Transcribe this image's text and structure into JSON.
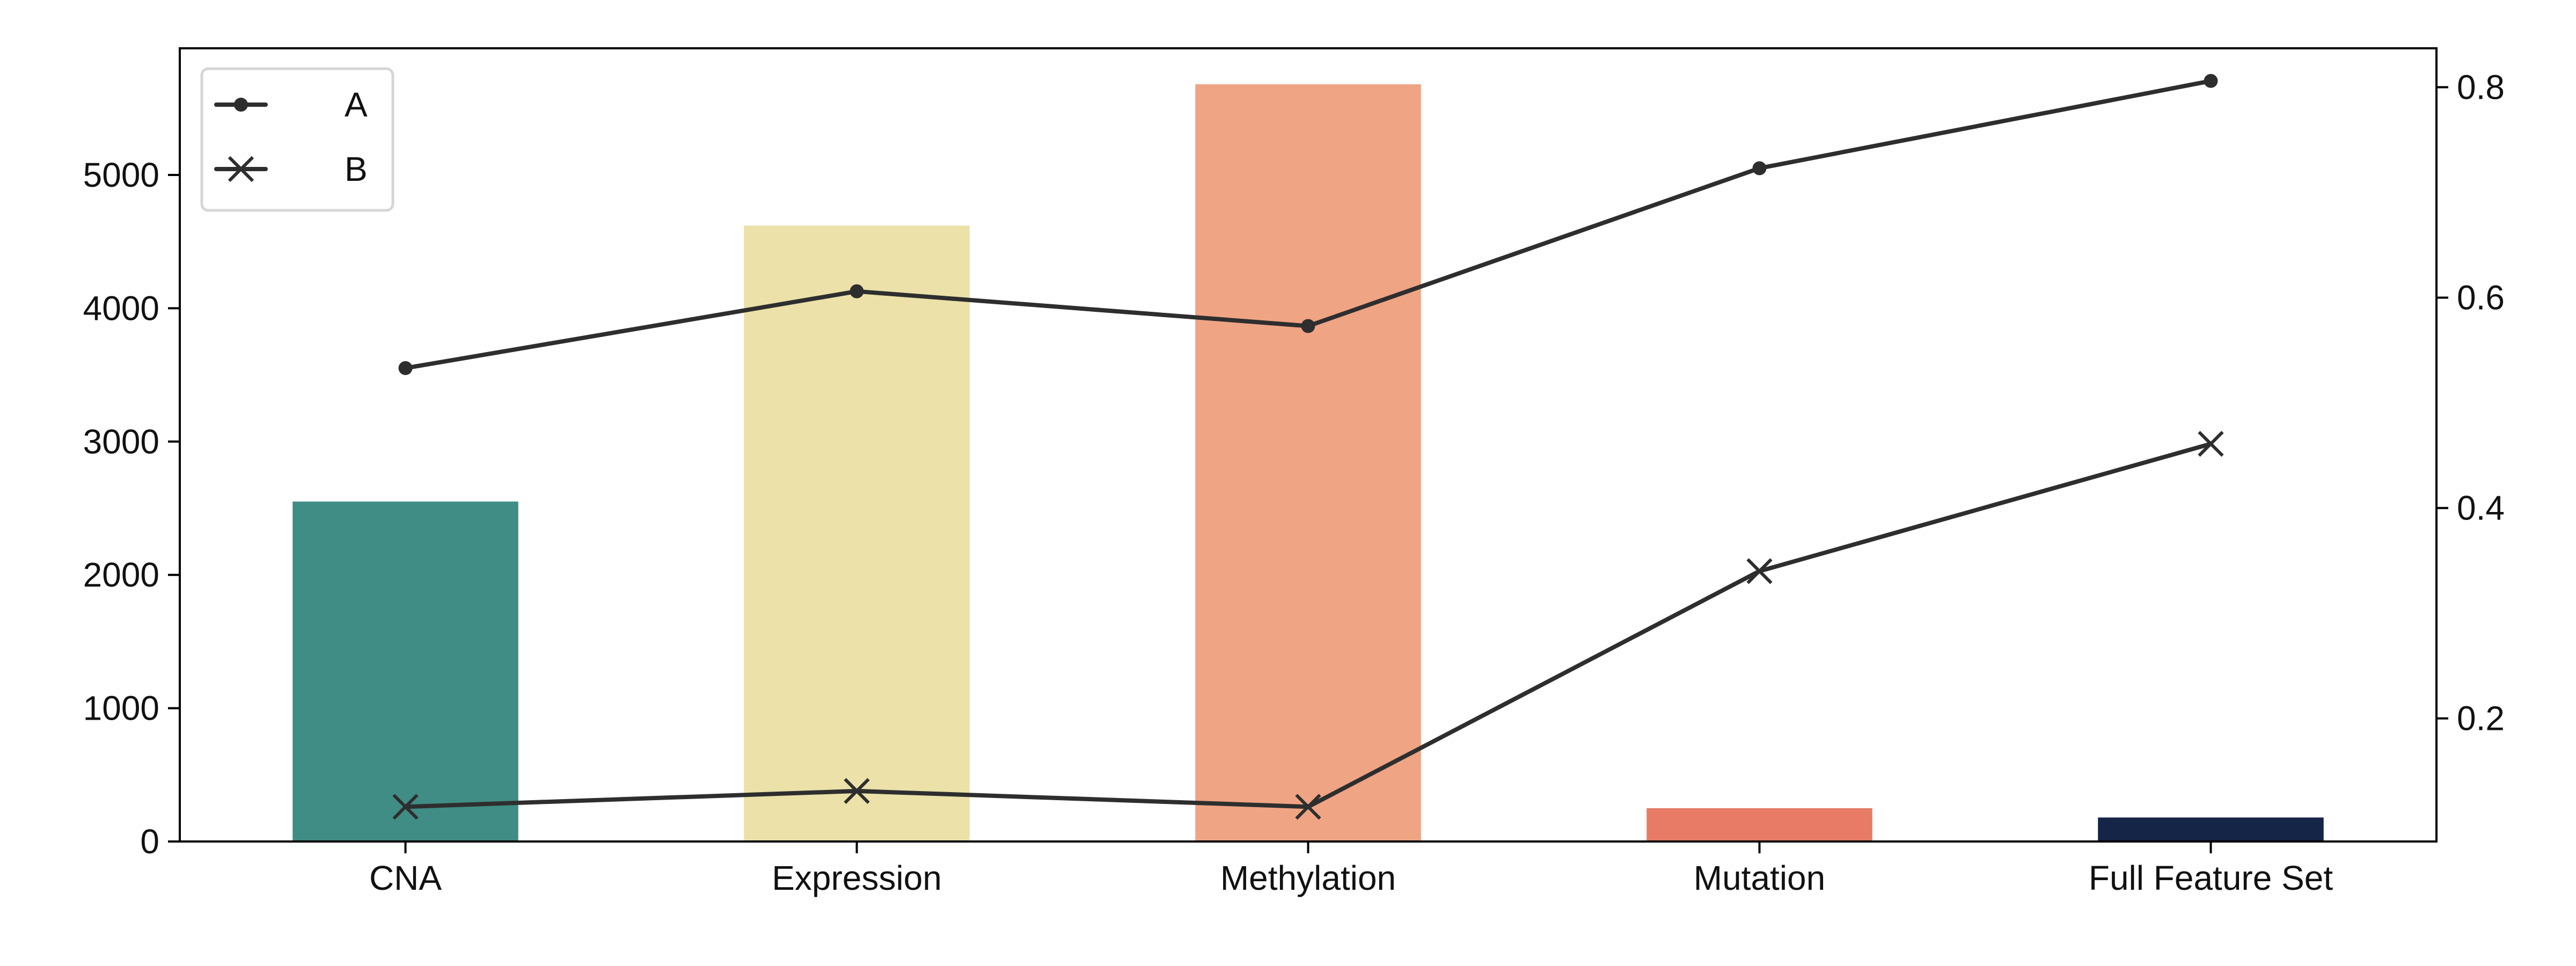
{
  "chart_data": {
    "type": "bar",
    "categories": [
      "CNA",
      "Expression",
      "Methylation",
      "Mutation",
      "Full Feature Set"
    ],
    "bars": {
      "values": [
        2550,
        4620,
        5680,
        250,
        180
      ],
      "colors": [
        "#3f8d85",
        "#ebe1a9",
        "#efa484",
        "#e77b66",
        "#152547"
      ]
    },
    "y_left": {
      "ylim": [
        0,
        5950
      ],
      "ticks": [
        0,
        1000,
        2000,
        3000,
        4000,
        5000
      ]
    },
    "y_right": {
      "ylim": [
        0.083,
        0.837
      ],
      "ticks": [
        0.2,
        0.4,
        0.6,
        0.8
      ]
    },
    "series": [
      {
        "name": "A",
        "axis": "right",
        "marker": "dot",
        "values": [
          0.533,
          0.606,
          0.573,
          0.723,
          0.806
        ]
      },
      {
        "name": "B",
        "axis": "right",
        "marker": "x",
        "values": [
          0.116,
          0.131,
          0.116,
          0.34,
          0.461
        ]
      }
    ],
    "line_color": "#2e2e2e",
    "legend": {
      "placement": "top-left"
    },
    "grid": false
  }
}
